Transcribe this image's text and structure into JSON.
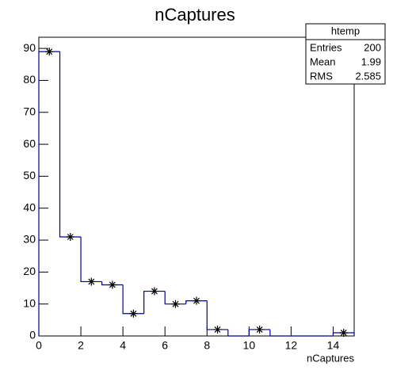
{
  "chart_data": {
    "type": "histogram",
    "title": "nCaptures",
    "x_label": "nCaptures",
    "bins": [
      0,
      1,
      2,
      3,
      4,
      5,
      6,
      7,
      8,
      9,
      10,
      11,
      12,
      13,
      14,
      15
    ],
    "values": [
      89,
      31,
      17,
      16,
      7,
      14,
      10,
      11,
      2,
      0,
      2,
      0,
      0,
      0,
      1
    ],
    "line_color": "#000099",
    "marker_color": "#000000",
    "xlim": [
      0,
      15
    ],
    "ylim": [
      0,
      93.5
    ],
    "xticks": [
      0,
      2,
      4,
      6,
      8,
      10,
      12,
      14
    ],
    "yticks": [
      0,
      10,
      20,
      30,
      40,
      50,
      60,
      70,
      80,
      90
    ],
    "stats": {
      "title": "htemp",
      "rows": [
        {
          "label": "Entries",
          "value": 200
        },
        {
          "label": "Mean",
          "value": 1.99
        },
        {
          "label": "RMS",
          "value": 2.585
        }
      ]
    }
  }
}
